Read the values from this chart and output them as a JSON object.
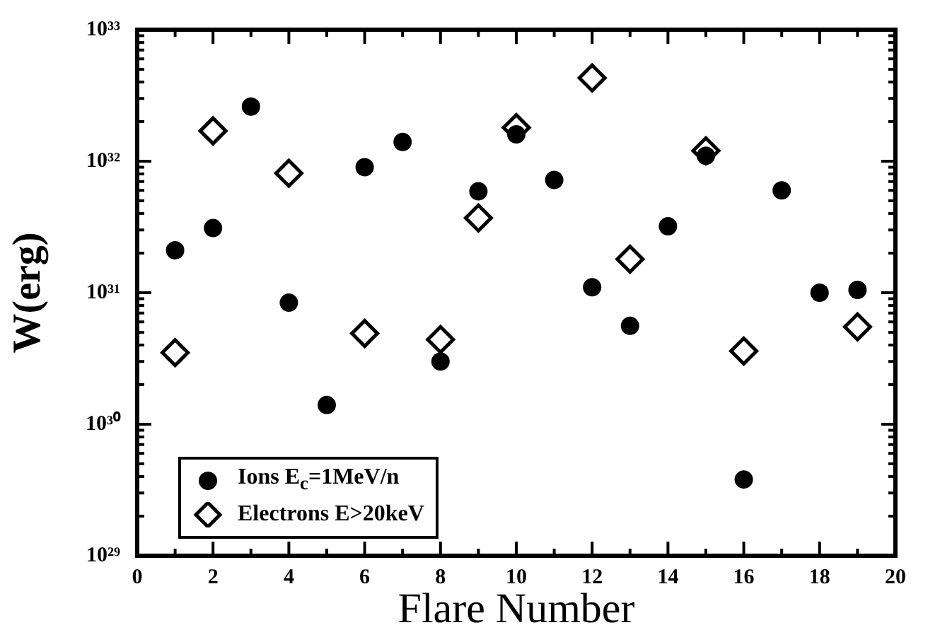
{
  "chart_data": {
    "type": "scatter",
    "xlabel": "Flare Number",
    "ylabel": "W(erg)",
    "x": [
      1,
      2,
      3,
      4,
      5,
      6,
      7,
      8,
      9,
      10,
      11,
      12,
      13,
      14,
      15,
      16,
      17,
      18,
      19
    ],
    "series": [
      {
        "name": "Ions E$_{c}$=1MeV/n",
        "color": "#000000",
        "marker": "circle",
        "values": [
          2.1e+31,
          3.1e+31,
          2.6e+32,
          8.4e+30,
          1.4e+30,
          9e+31,
          1.4e+32,
          3e+30,
          5.9e+31,
          1.6e+32,
          7.2e+31,
          1.1e+31,
          5.6e+30,
          3.2e+31,
          1.1e+32,
          3.8e+29,
          6e+31,
          1e+31,
          1.05e+31
        ]
      },
      {
        "name": "Electrons E>20keV",
        "color": "#000000",
        "marker": "diamond",
        "values": [
          3.5e+30,
          1.7e+32,
          null,
          8.1e+31,
          null,
          4.9e+30,
          null,
          4.4e+30,
          3.7e+31,
          1.8e+32,
          null,
          4.3e+32,
          1.8e+31,
          null,
          1.2e+32,
          3.6e+30,
          null,
          null,
          5.5e+30
        ]
      }
    ],
    "xlim": [
      0,
      20
    ],
    "xticks": [
      0,
      {
        "value": 1,
        "label": null
      },
      2,
      {
        "value": 3,
        "label": null
      },
      4,
      {
        "value": 5,
        "label": null
      },
      6,
      {
        "value": 7,
        "label": null
      },
      8,
      {
        "value": 9,
        "label": null
      },
      10,
      {
        "value": 11,
        "label": null
      },
      12,
      {
        "value": 13,
        "label": null
      },
      14,
      {
        "value": 15,
        "label": null
      },
      16,
      {
        "value": 17,
        "label": null
      },
      18,
      {
        "value": 19,
        "label": null
      },
      20
    ],
    "log": "y",
    "ylim": [
      1e+29,
      1e+33
    ],
    "yticks": [
      {
        "value": 1e+29,
        "label": "10²⁹"
      },
      {
        "value": 2e+29,
        "label": null
      },
      {
        "value": 3e+29,
        "label": null
      },
      {
        "value": 4e+29,
        "label": null
      },
      {
        "value": 5e+29,
        "label": null
      },
      {
        "value": 6e+29,
        "label": null
      },
      {
        "value": 7e+29,
        "label": null
      },
      {
        "value": 8e+29,
        "label": null
      },
      {
        "value": 9e+29,
        "label": null
      },
      {
        "value": 1e+30,
        "label": "10³⁰"
      },
      {
        "value": 2e+30,
        "label": null
      },
      {
        "value": 3e+30,
        "label": null
      },
      {
        "value": 4e+30,
        "label": null
      },
      {
        "value": 5e+30,
        "label": null
      },
      {
        "value": 6e+30,
        "label": null
      },
      {
        "value": 7e+30,
        "label": null
      },
      {
        "value": 8e+30,
        "label": null
      },
      {
        "value": 9e+30,
        "label": null
      },
      {
        "value": 1e+31,
        "label": "10³¹"
      },
      {
        "value": 2e+31,
        "label": null
      },
      {
        "value": 3e+31,
        "label": null
      },
      {
        "value": 4e+31,
        "label": null
      },
      {
        "value": 5e+31,
        "label": null
      },
      {
        "value": 6e+31,
        "label": null
      },
      {
        "value": 7e+31,
        "label": null
      },
      {
        "value": 8e+31,
        "label": null
      },
      {
        "value": 9e+31,
        "label": null
      },
      {
        "value": 1e+32,
        "label": "10³²"
      },
      {
        "value": 2e+32,
        "label": null
      },
      {
        "value": 3e+32,
        "label": null
      },
      {
        "value": 4e+32,
        "label": null
      },
      {
        "value": 5e+32,
        "label": null
      },
      {
        "value": 6e+32,
        "label": null
      },
      {
        "value": 7e+32,
        "label": null
      },
      {
        "value": 8e+32,
        "label": null
      },
      {
        "value": 9e+32,
        "label": null
      },
      {
        "value": 1e+33,
        "label": "10³³"
      }
    ],
    "grid": false,
    "legend": "bottom left"
  }
}
